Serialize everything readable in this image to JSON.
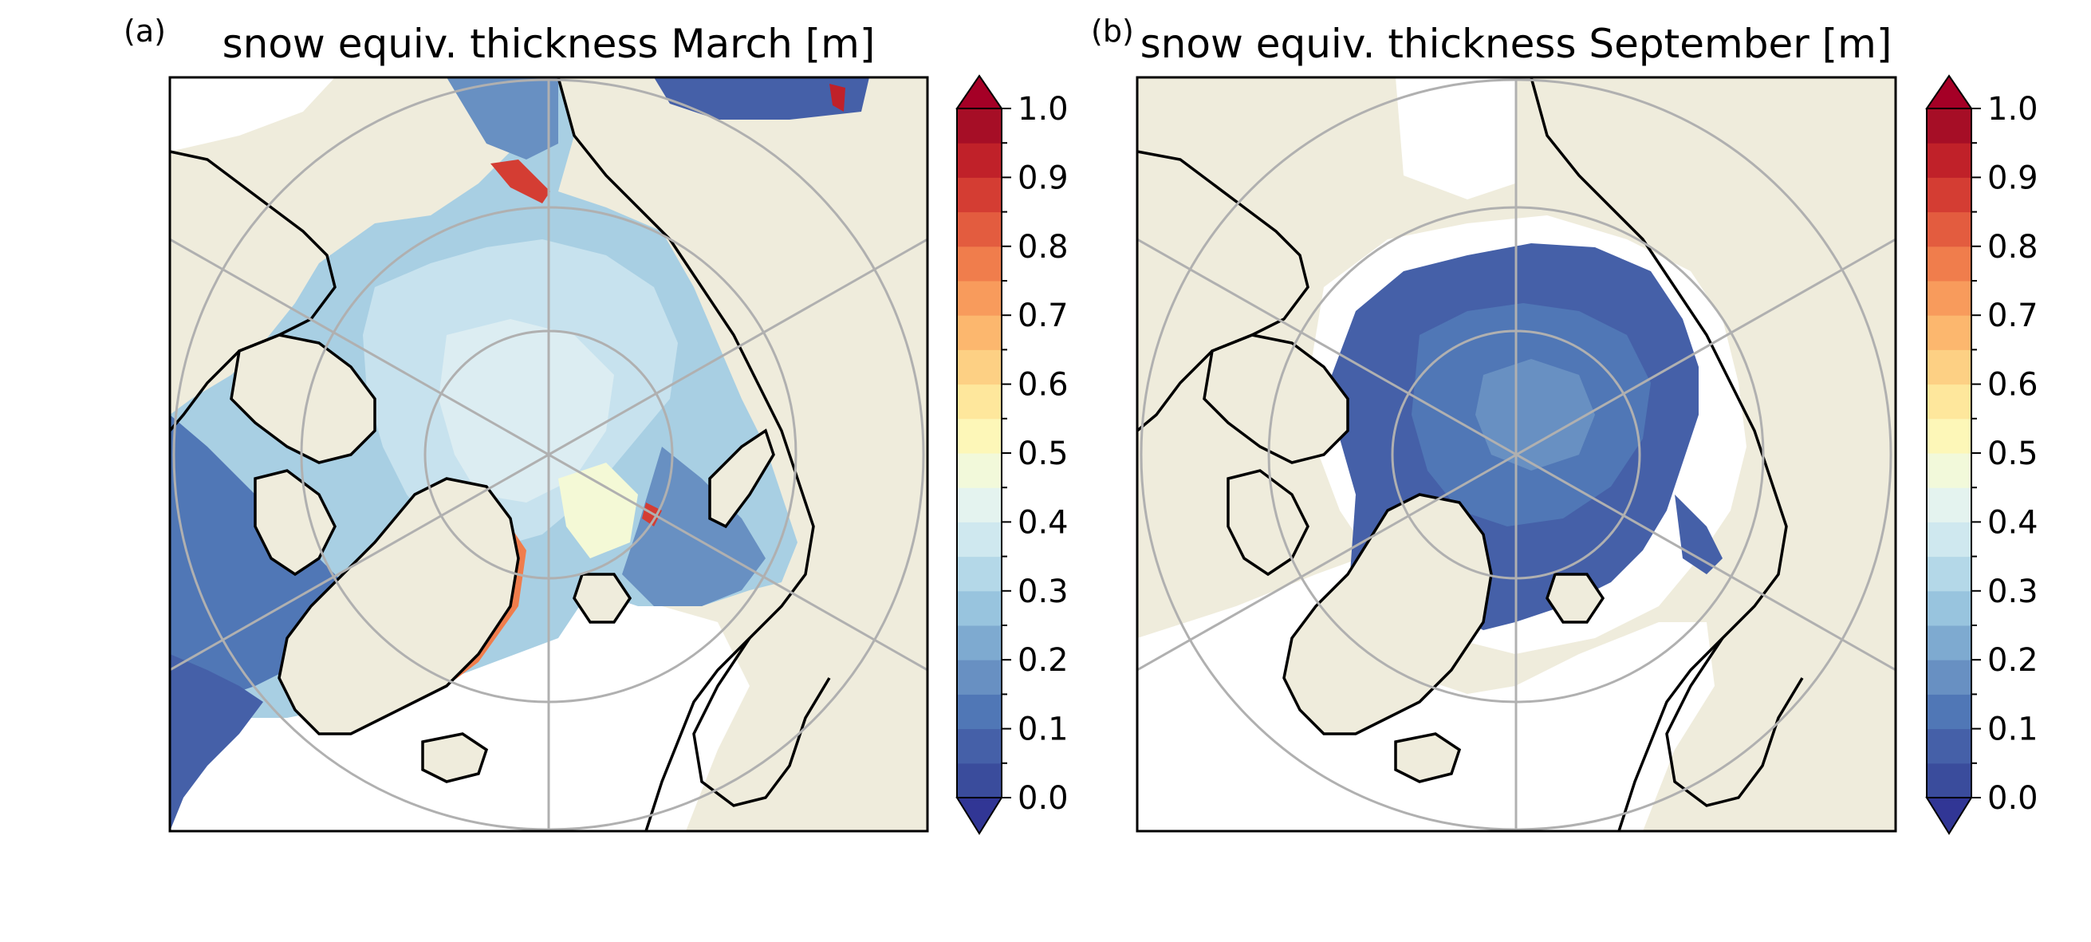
{
  "figure": {
    "panels": [
      {
        "label": "(a)",
        "title": "snow equiv. thickness March [m]",
        "colorbar_ticks": [
          "0.0",
          "0.1",
          "0.2",
          "0.3",
          "0.4",
          "0.5",
          "0.6",
          "0.7",
          "0.8",
          "0.9",
          "1.0"
        ]
      },
      {
        "label": "(b)",
        "title": "snow equiv. thickness September [m]",
        "colorbar_ticks": [
          "0.0",
          "0.1",
          "0.2",
          "0.3",
          "0.4",
          "0.5",
          "0.6",
          "0.7",
          "0.8",
          "0.9",
          "1.0"
        ]
      }
    ]
  },
  "map": {
    "projection": "north polar stereographic",
    "land_color": "#efecdc",
    "no_data_color": "#ffffff",
    "graticule_color": "#b0b0b0",
    "coastline_color": "#000000"
  },
  "colorbar": {
    "range": [
      0.0,
      1.0
    ],
    "extend": "both",
    "levels": 20,
    "colors": [
      "#3a4c9c",
      "#4560a8",
      "#5077b6",
      "#6890c2",
      "#7eaad0",
      "#98c4de",
      "#b4d8e8",
      "#cfe8ef",
      "#e4f3ef",
      "#f2f9da",
      "#fdf7b8",
      "#fee79c",
      "#fdd084",
      "#fcb76e",
      "#f89b5c",
      "#f07d4c",
      "#e35c3f",
      "#d43d33",
      "#c02129",
      "#a60e26"
    ],
    "under_color": "#313695",
    "over_color": "#a50026"
  }
}
